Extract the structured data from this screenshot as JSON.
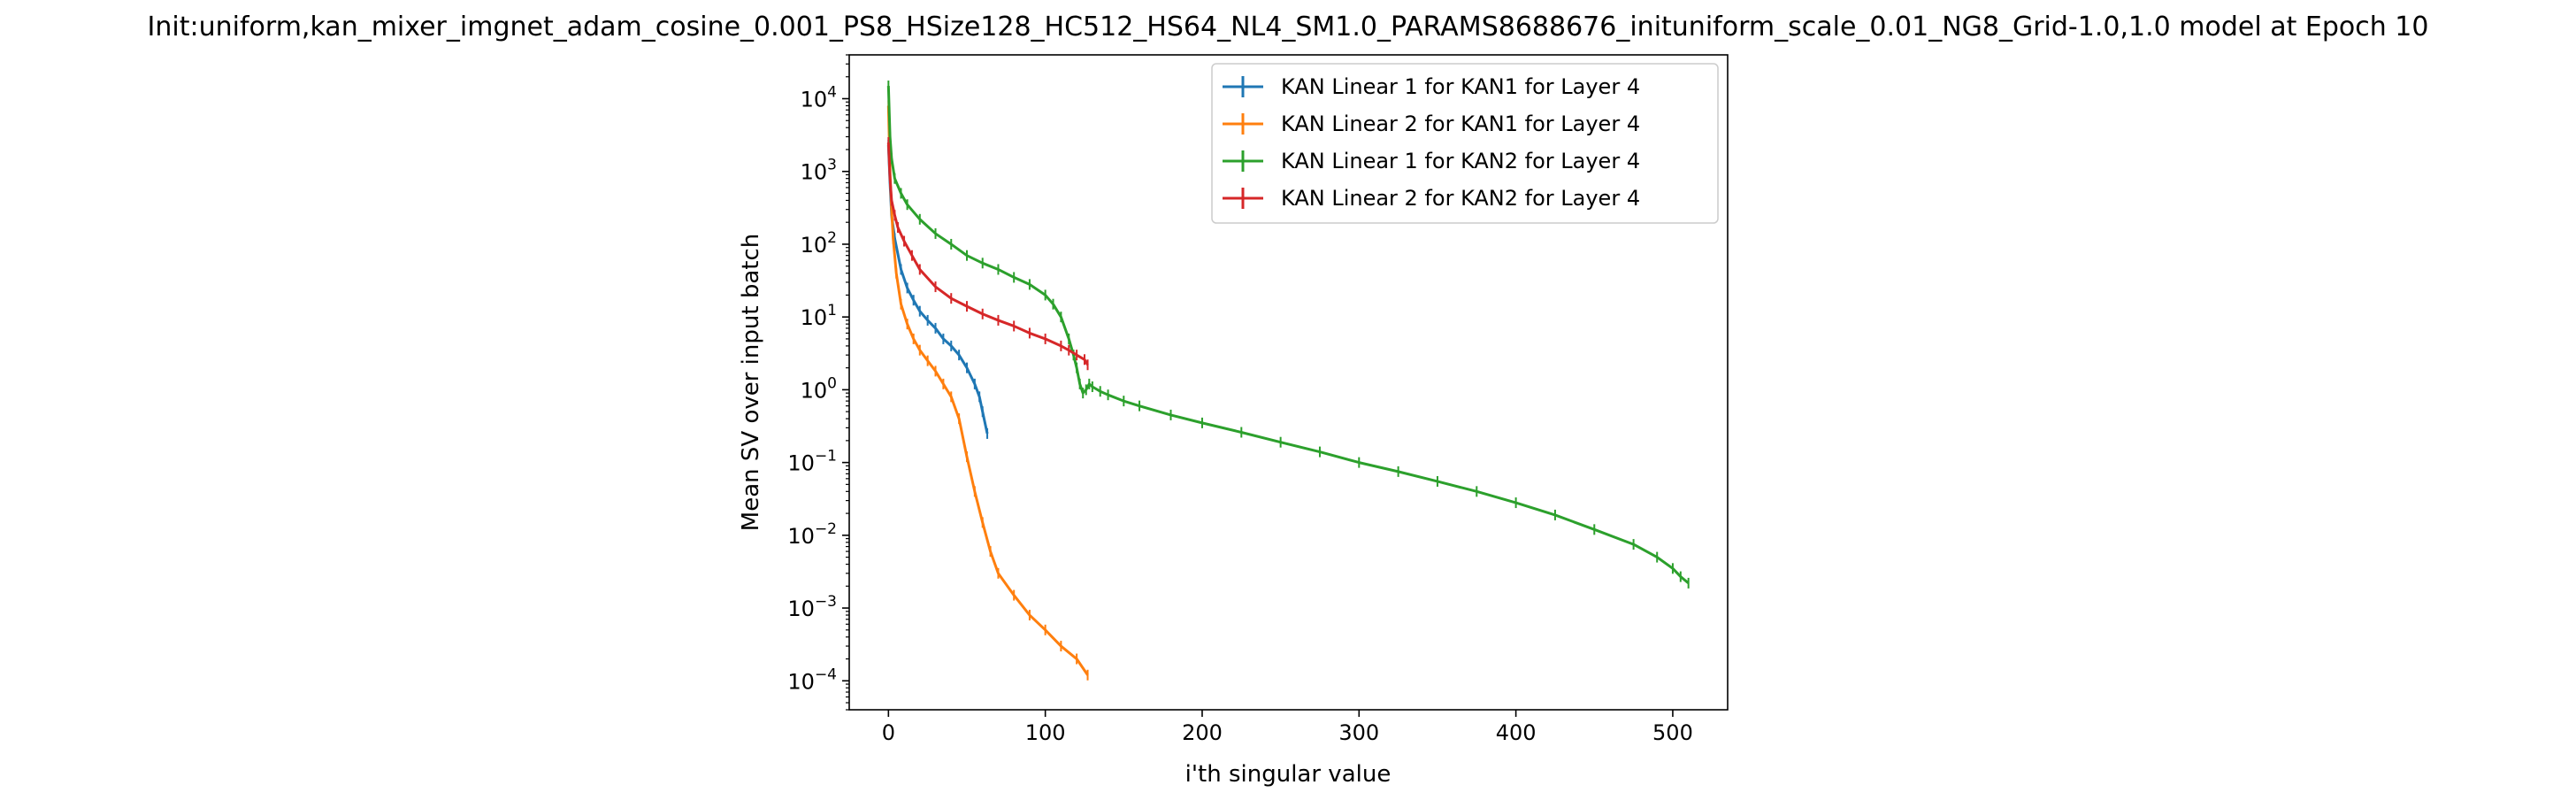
{
  "chart_data": {
    "type": "line",
    "title": "Init:uniform,kan_mixer_imgnet_adam_cosine_0.001_PS8_HSize128_HC512_HS64_NL4_SM1.0_PARAMS8688676_inituniform_scale_0.01_NG8_Grid-1.0,1.0 model at Epoch 10",
    "xlabel": "i'th singular value",
    "ylabel": "Mean SV over input batch",
    "yscale": "log",
    "xlim": [
      -25,
      535
    ],
    "ylim": [
      4e-05,
      40000
    ],
    "x_ticks": [
      0,
      100,
      200,
      300,
      400,
      500
    ],
    "x_tick_labels": [
      "0",
      "100",
      "200",
      "300",
      "400",
      "500"
    ],
    "y_ticks": [
      0.0001,
      0.001,
      0.01,
      0.1,
      1,
      10,
      100,
      1000,
      10000
    ],
    "y_tick_labels": [
      {
        "base": "10",
        "exp": "−4"
      },
      {
        "base": "10",
        "exp": "−3"
      },
      {
        "base": "10",
        "exp": "−2"
      },
      {
        "base": "10",
        "exp": "−1"
      },
      {
        "base": "10",
        "exp": "0"
      },
      {
        "base": "10",
        "exp": "1"
      },
      {
        "base": "10",
        "exp": "2"
      },
      {
        "base": "10",
        "exp": "3"
      },
      {
        "base": "10",
        "exp": "4"
      }
    ],
    "grid": false,
    "legend_position": "upper-right",
    "error_bars": true,
    "series": [
      {
        "name": "KAN Linear 1 for KAN1 for Layer 4",
        "color": "#1f77b4",
        "x": [
          0,
          1,
          2,
          4,
          8,
          12,
          16,
          20,
          25,
          30,
          35,
          40,
          45,
          50,
          55,
          58,
          60,
          63
        ],
        "y": [
          2300,
          700,
          250,
          120,
          45,
          25,
          17,
          12,
          9,
          7,
          5,
          4,
          3,
          2,
          1.2,
          0.8,
          0.5,
          0.25
        ]
      },
      {
        "name": "KAN Linear 2 for KAN1 for Layer 4",
        "color": "#ff7f0e",
        "x": [
          0,
          1,
          2,
          3,
          5,
          8,
          12,
          16,
          20,
          25,
          30,
          35,
          40,
          45,
          50,
          55,
          60,
          65,
          70,
          80,
          90,
          100,
          110,
          120,
          127
        ],
        "y": [
          8000,
          1000,
          300,
          120,
          40,
          15,
          8,
          5,
          3.5,
          2.5,
          1.8,
          1.2,
          0.8,
          0.4,
          0.12,
          0.04,
          0.015,
          0.006,
          0.003,
          0.0015,
          0.0008,
          0.0005,
          0.0003,
          0.0002,
          0.00012
        ]
      },
      {
        "name": "KAN Linear 1 for KAN2 for Layer 4",
        "color": "#2ca02c",
        "x": [
          0,
          1,
          2,
          4,
          8,
          12,
          20,
          30,
          40,
          50,
          60,
          70,
          80,
          90,
          100,
          105,
          110,
          115,
          118,
          120,
          122,
          124,
          126,
          128,
          130,
          135,
          140,
          150,
          160,
          180,
          200,
          225,
          250,
          275,
          300,
          325,
          350,
          375,
          400,
          425,
          450,
          475,
          490,
          500,
          505,
          510
        ],
        "y": [
          15000,
          3000,
          1500,
          800,
          500,
          350,
          220,
          140,
          100,
          70,
          55,
          45,
          35,
          28,
          20,
          15,
          10,
          5,
          3,
          2,
          1.2,
          0.9,
          1.0,
          1.2,
          1.1,
          0.95,
          0.85,
          0.7,
          0.6,
          0.45,
          0.35,
          0.26,
          0.19,
          0.14,
          0.1,
          0.075,
          0.055,
          0.04,
          0.028,
          0.019,
          0.012,
          0.0075,
          0.005,
          0.0035,
          0.0027,
          0.0022
        ]
      },
      {
        "name": "KAN Linear 2 for KAN2 for Layer 4",
        "color": "#d62728",
        "x": [
          0,
          1,
          2,
          4,
          6,
          10,
          15,
          20,
          30,
          40,
          50,
          60,
          70,
          80,
          90,
          100,
          110,
          115,
          120,
          125,
          127
        ],
        "y": [
          2500,
          800,
          400,
          250,
          170,
          110,
          70,
          45,
          26,
          18,
          14,
          11,
          9,
          7.5,
          6,
          5,
          4,
          3.5,
          3,
          2.6,
          2.2
        ]
      }
    ]
  }
}
